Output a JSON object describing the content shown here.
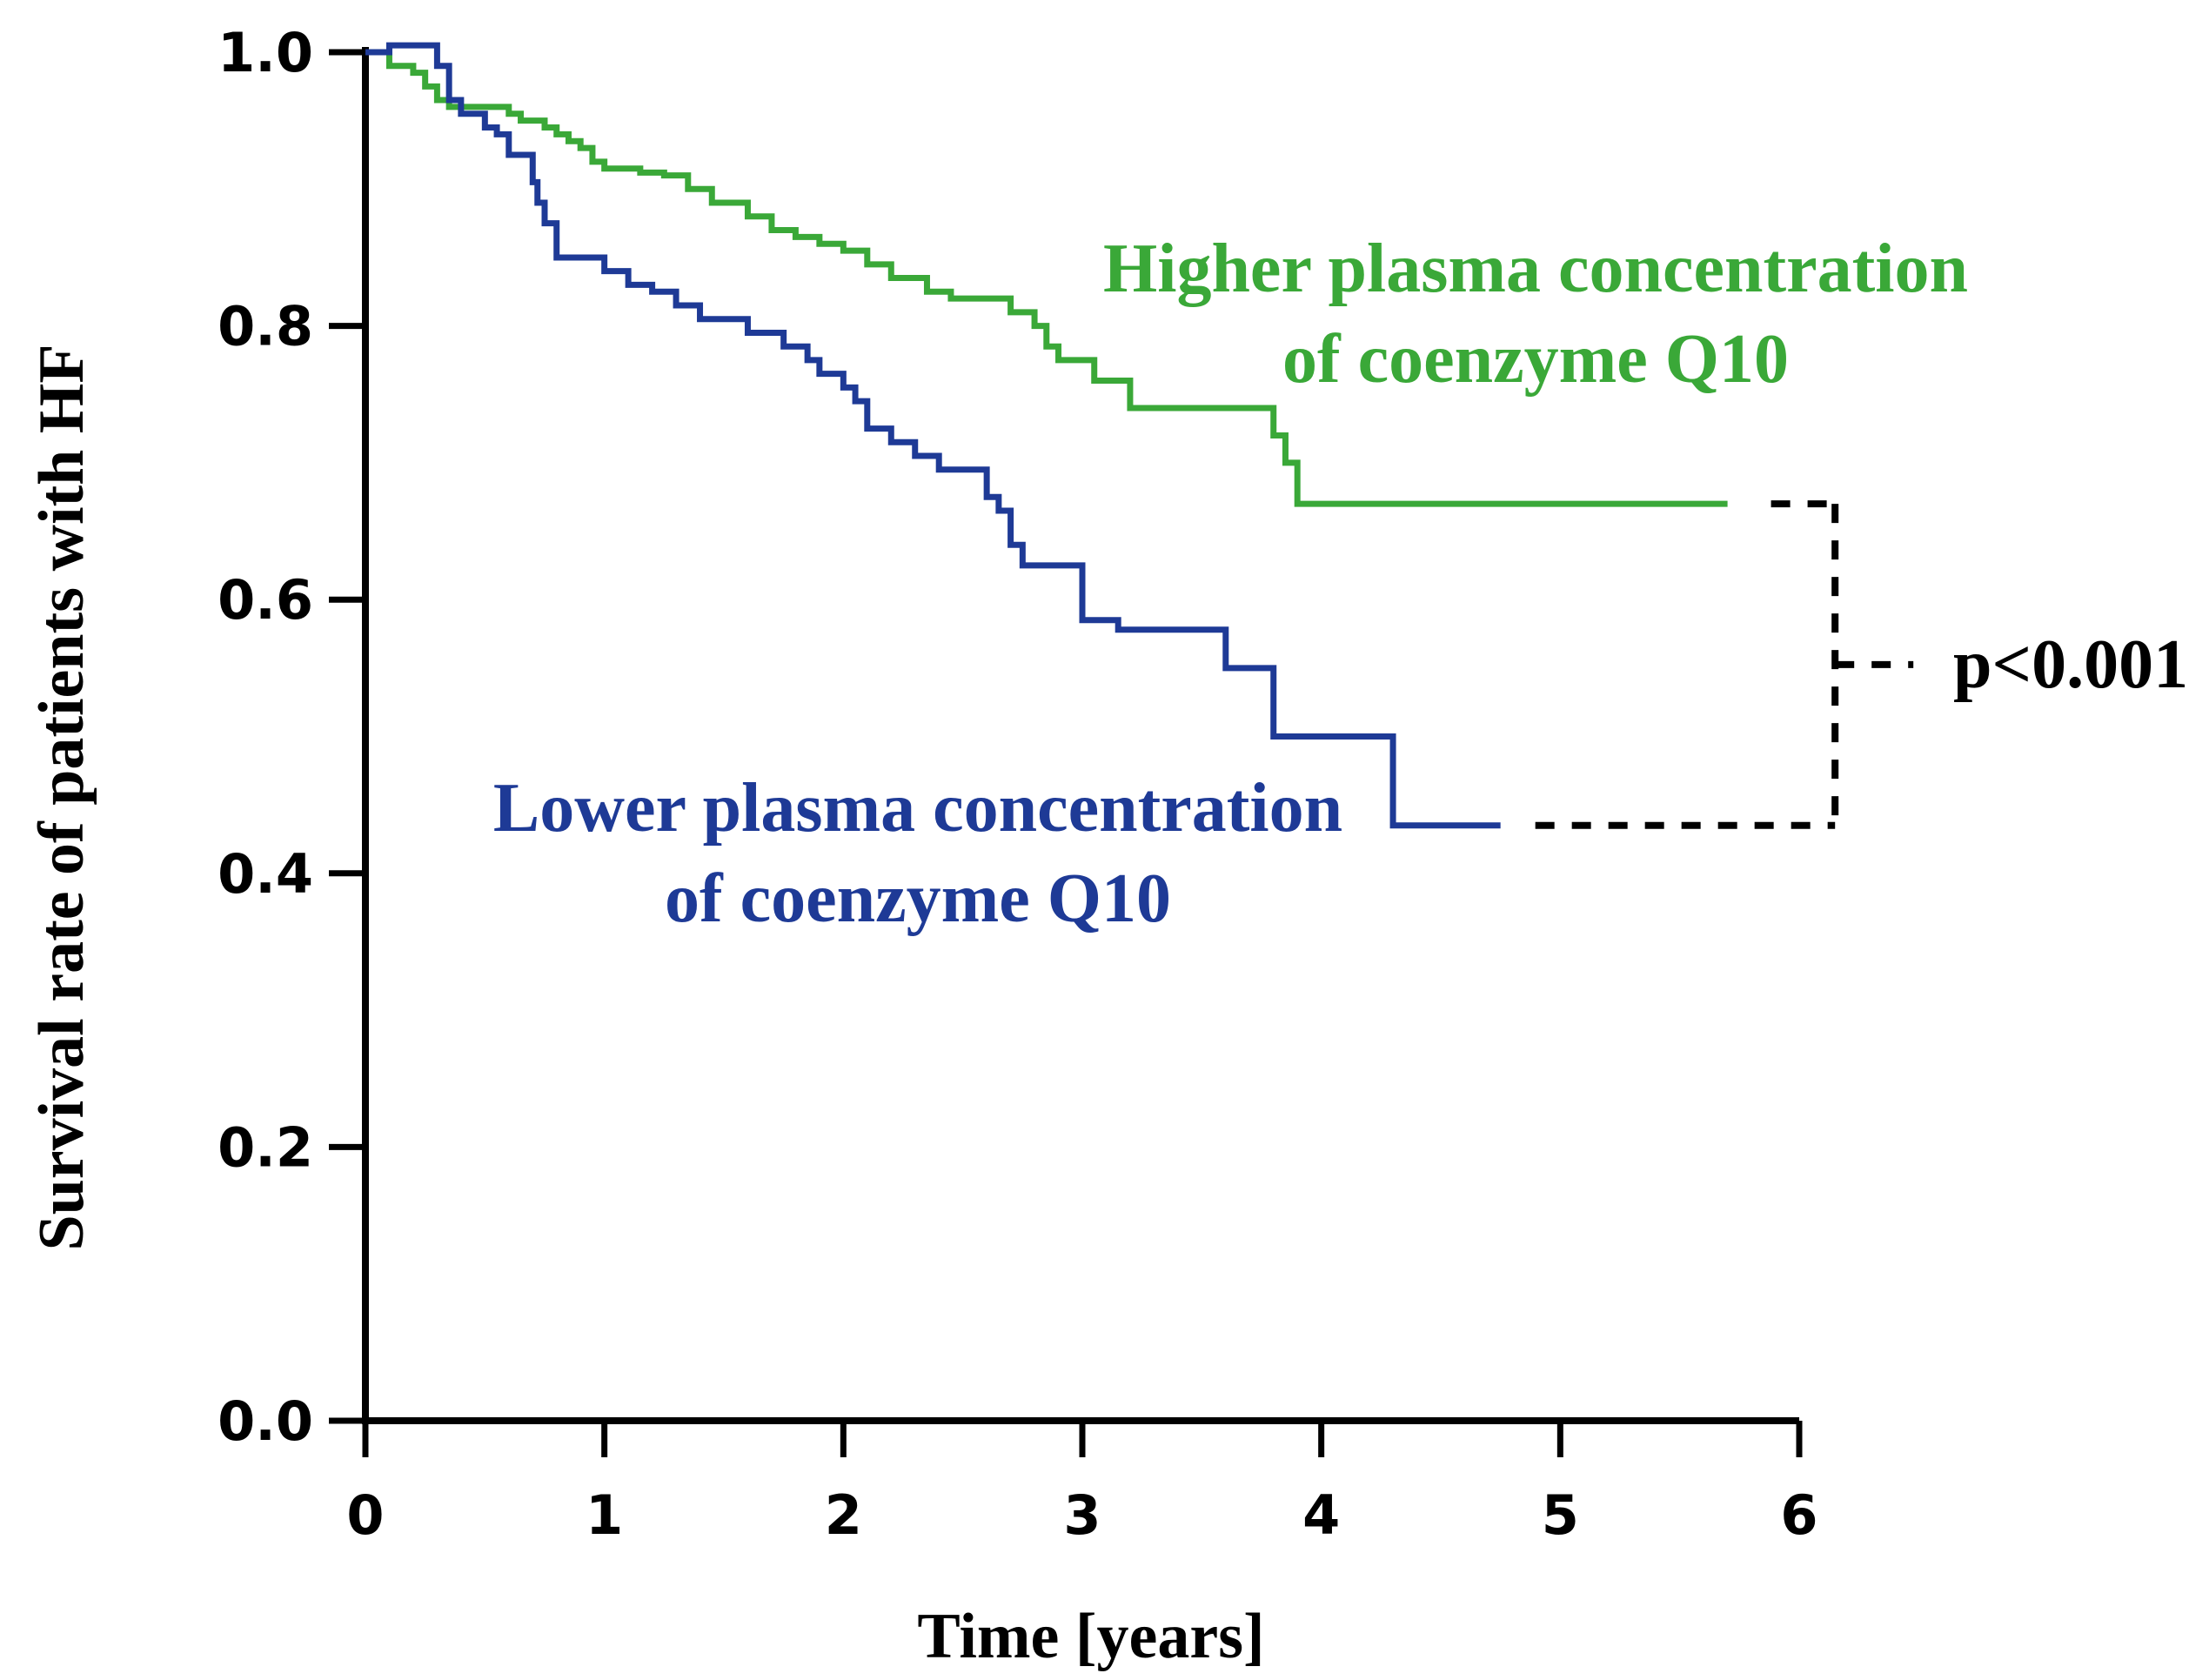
{
  "chart_data": {
    "type": "line",
    "subtype": "kaplan-meier step curves",
    "title": "",
    "xlabel": "Time [years]",
    "ylabel": "Survival rate of patients with HF",
    "xlim": [
      0,
      6
    ],
    "ylim": [
      0,
      1
    ],
    "x_ticks": [
      0,
      1,
      2,
      3,
      4,
      5,
      6
    ],
    "x_tick_labels": [
      "0",
      "1",
      "2",
      "3",
      "4",
      "5",
      "6"
    ],
    "y_ticks": [
      0,
      0.2,
      0.4,
      0.6,
      0.8,
      1.0
    ],
    "y_tick_labels": [
      "0.0",
      "0.2",
      "0.4",
      "0.6",
      "0.8",
      "1.0"
    ],
    "grid": false,
    "legend": "none (inline labels)",
    "series": [
      {
        "name": "Higher plasma concentration of coenzyme Q10",
        "label_lines": [
          "Higher plasma concentration",
          "of coenzyme Q10"
        ],
        "color": "#3aa838",
        "end_time": 5.7,
        "steps": [
          [
            0.0,
            1.0
          ],
          [
            0.1,
            0.99
          ],
          [
            0.2,
            0.985
          ],
          [
            0.25,
            0.975
          ],
          [
            0.3,
            0.965
          ],
          [
            0.35,
            0.96
          ],
          [
            0.6,
            0.955
          ],
          [
            0.65,
            0.95
          ],
          [
            0.75,
            0.945
          ],
          [
            0.8,
            0.94
          ],
          [
            0.85,
            0.935
          ],
          [
            0.9,
            0.93
          ],
          [
            0.95,
            0.92
          ],
          [
            1.0,
            0.915
          ],
          [
            1.15,
            0.912
          ],
          [
            1.25,
            0.91
          ],
          [
            1.35,
            0.9
          ],
          [
            1.45,
            0.89
          ],
          [
            1.6,
            0.88
          ],
          [
            1.7,
            0.87
          ],
          [
            1.8,
            0.865
          ],
          [
            1.9,
            0.86
          ],
          [
            2.0,
            0.855
          ],
          [
            2.1,
            0.845
          ],
          [
            2.2,
            0.835
          ],
          [
            2.35,
            0.825
          ],
          [
            2.45,
            0.82
          ],
          [
            2.7,
            0.81
          ],
          [
            2.8,
            0.8
          ],
          [
            2.85,
            0.785
          ],
          [
            2.9,
            0.775
          ],
          [
            3.05,
            0.76
          ],
          [
            3.2,
            0.74
          ],
          [
            3.8,
            0.72
          ],
          [
            3.85,
            0.7
          ],
          [
            3.9,
            0.67
          ]
        ]
      },
      {
        "name": "Lower plasma concentration of coenzyme Q10",
        "label_lines": [
          "Lower plasma concentration",
          "of coenzyme Q10"
        ],
        "color": "#1e3a96",
        "end_time": 4.75,
        "steps": [
          [
            0.0,
            1.0
          ],
          [
            0.1,
            1.005
          ],
          [
            0.3,
            0.99
          ],
          [
            0.35,
            0.965
          ],
          [
            0.4,
            0.955
          ],
          [
            0.5,
            0.945
          ],
          [
            0.55,
            0.94
          ],
          [
            0.6,
            0.925
          ],
          [
            0.7,
            0.905
          ],
          [
            0.72,
            0.89
          ],
          [
            0.75,
            0.875
          ],
          [
            0.8,
            0.85
          ],
          [
            1.0,
            0.84
          ],
          [
            1.1,
            0.83
          ],
          [
            1.2,
            0.825
          ],
          [
            1.3,
            0.815
          ],
          [
            1.4,
            0.805
          ],
          [
            1.6,
            0.795
          ],
          [
            1.75,
            0.785
          ],
          [
            1.85,
            0.775
          ],
          [
            1.9,
            0.765
          ],
          [
            2.0,
            0.755
          ],
          [
            2.05,
            0.745
          ],
          [
            2.1,
            0.725
          ],
          [
            2.2,
            0.715
          ],
          [
            2.3,
            0.705
          ],
          [
            2.4,
            0.695
          ],
          [
            2.6,
            0.675
          ],
          [
            2.65,
            0.665
          ],
          [
            2.7,
            0.64
          ],
          [
            2.75,
            0.625
          ],
          [
            3.0,
            0.585
          ],
          [
            3.15,
            0.578
          ],
          [
            3.6,
            0.55
          ],
          [
            3.8,
            0.5
          ],
          [
            4.3,
            0.435
          ]
        ]
      }
    ],
    "annotations": [
      {
        "text": "p<0.001",
        "type": "comparison bracket",
        "x_start": 5.85,
        "x_bracket": 6.15,
        "y_top": 0.67,
        "y_bottom": 0.435
      }
    ]
  }
}
